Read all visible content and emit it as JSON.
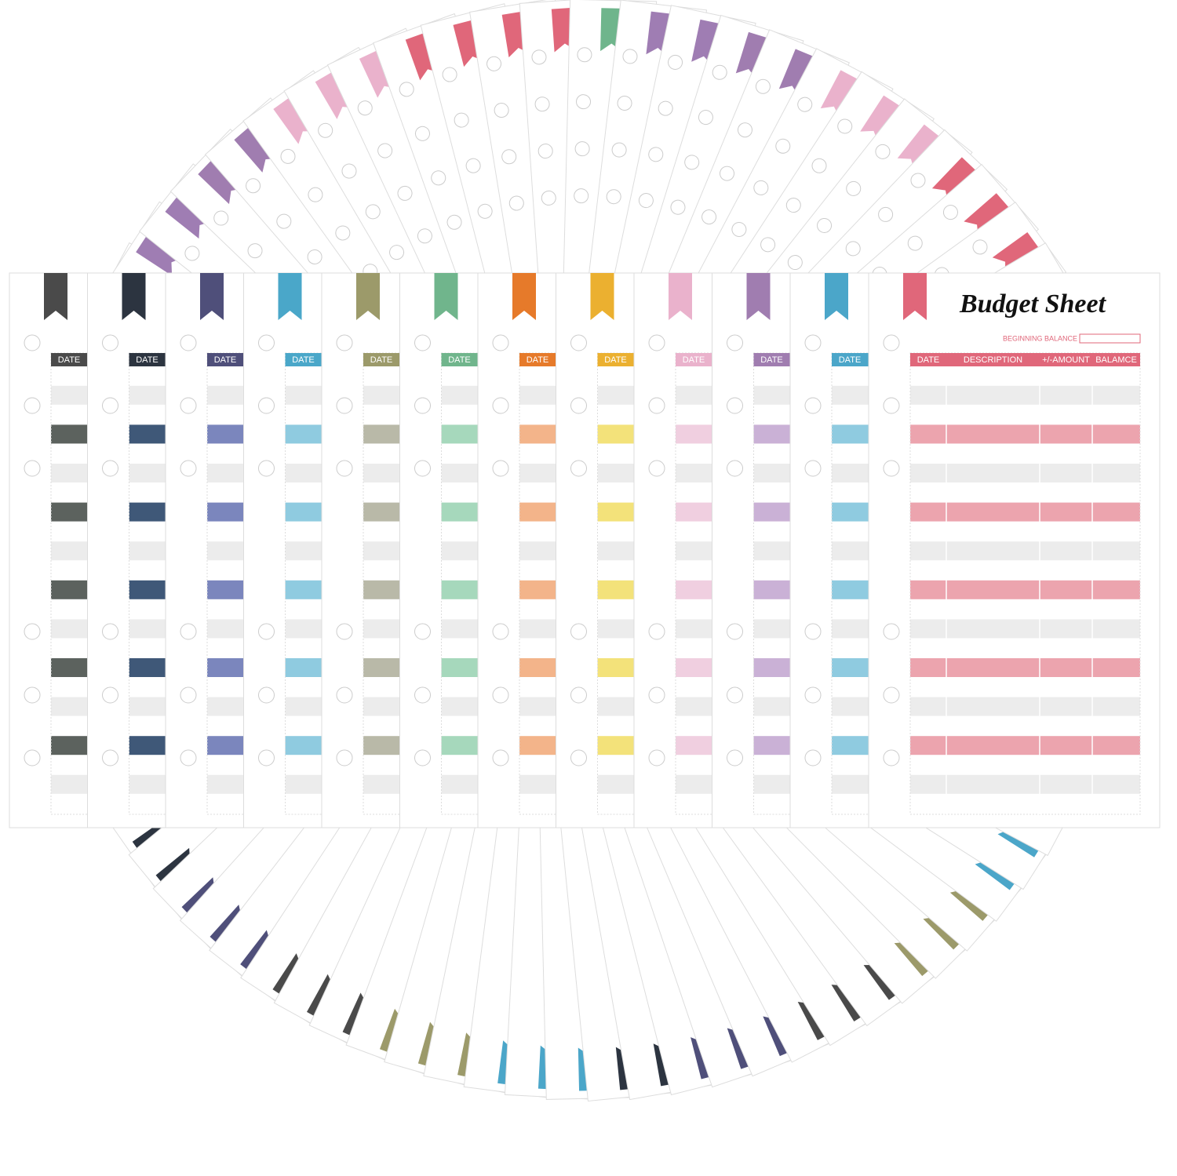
{
  "sheets": [
    {
      "label": "DATE"
    },
    {
      "label": "DATE"
    },
    {
      "label": "DATE"
    },
    {
      "label": "DATE"
    },
    {
      "label": "DATE"
    },
    {
      "label": "DATE"
    },
    {
      "label": "DATE"
    },
    {
      "label": "DATE"
    },
    {
      "label": "DATE"
    },
    {
      "label": "DATE"
    },
    {
      "label": "DATE"
    }
  ],
  "budget_sheet": {
    "title": "Budget Sheet",
    "beginning_balance_label": "BEGINNING BALANCE",
    "columns": [
      "DATE",
      "DESCRIPTION",
      "+/-AMOUNT",
      "BALAMCE"
    ]
  }
}
